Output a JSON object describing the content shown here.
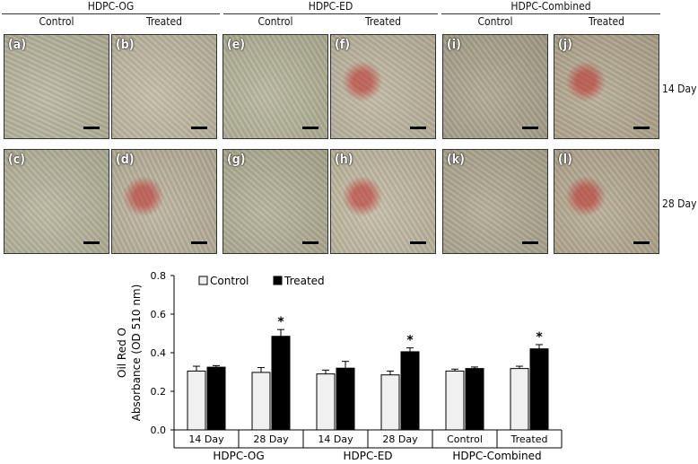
{
  "figure": {
    "groups": [
      {
        "title": "HDPC-OG",
        "cols": [
          "Control",
          "Treated"
        ]
      },
      {
        "title": "HDPC-ED",
        "cols": [
          "Control",
          "Treated"
        ]
      },
      {
        "title": "HDPC-Combined",
        "cols": [
          "Control",
          "Treated"
        ]
      }
    ],
    "row_labels": [
      "14 Day",
      "28 Day"
    ],
    "panels": [
      {
        "label": "(a)",
        "tone": "#b8b49c",
        "red": false
      },
      {
        "label": "(b)",
        "tone": "#bfb8a0",
        "red": false
      },
      {
        "label": "(e)",
        "tone": "#b4b296",
        "red": false
      },
      {
        "label": "(f)",
        "tone": "#bcb59d",
        "red": true
      },
      {
        "label": "(i)",
        "tone": "#a9a38a",
        "red": false
      },
      {
        "label": "(j)",
        "tone": "#b3a88e",
        "red": true
      },
      {
        "label": "(c)",
        "tone": "#b6b39a",
        "red": false
      },
      {
        "label": "(d)",
        "tone": "#b9b19a",
        "red": true
      },
      {
        "label": "(g)",
        "tone": "#b1ae93",
        "red": false
      },
      {
        "label": "(h)",
        "tone": "#c0b9a0",
        "red": true
      },
      {
        "label": "(k)",
        "tone": "#aea88e",
        "red": false
      },
      {
        "label": "(l)",
        "tone": "#b4a98f",
        "red": true
      }
    ]
  },
  "chart_data": {
    "type": "bar",
    "ylabel_line1": "Oil Red  O",
    "ylabel_line2": "Absorbance (OD 510 nm)",
    "ylim": [
      0.0,
      0.8
    ],
    "yticks": [
      "0.0",
      "0.2",
      "0.4",
      "0.6",
      "0.8"
    ],
    "categories": [
      "14 Day",
      "28 Day",
      "14 Day",
      "28 Day",
      "Control",
      "Treated"
    ],
    "group_labels": [
      "HDPC-OG",
      "HDPC-ED",
      "HDPC-Combined"
    ],
    "series": [
      {
        "name": "Control",
        "color": "#f0f0f0",
        "values": [
          0.305,
          0.298,
          0.29,
          0.285,
          0.305,
          0.318
        ],
        "errors": [
          0.025,
          0.025,
          0.02,
          0.02,
          0.01,
          0.012
        ]
      },
      {
        "name": "Treated",
        "color": "#000000",
        "values": [
          0.325,
          0.485,
          0.32,
          0.405,
          0.318,
          0.42
        ],
        "errors": [
          0.008,
          0.035,
          0.035,
          0.02,
          0.008,
          0.022
        ]
      }
    ],
    "significance": [
      "",
      "*",
      "",
      "*",
      "",
      "*"
    ]
  }
}
